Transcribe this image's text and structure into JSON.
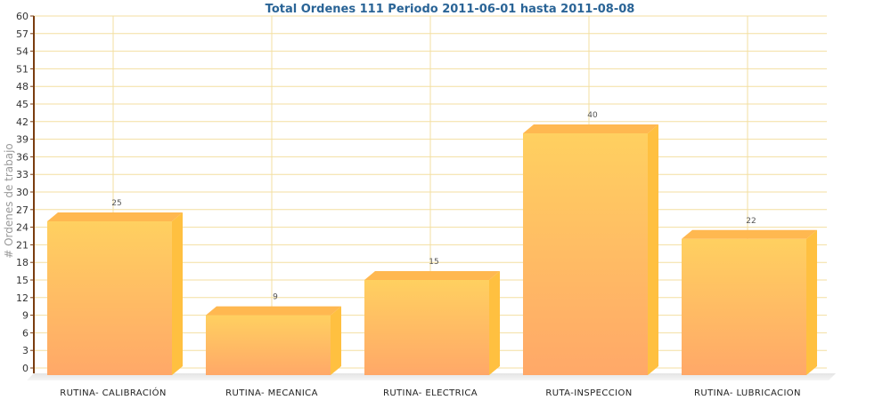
{
  "chart_data": {
    "type": "bar",
    "title": "Total Ordenes 111 Periodo 2011-06-01 hasta 2011-08-08",
    "xlabel": "",
    "ylabel": "# Ordenes de trabajo",
    "categories": [
      "RUTINA- CALIBRACIÓN",
      "RUTINA- MECANICA",
      "RUTINA- ELECTRICA",
      "RUTA-INSPECCION",
      "RUTINA- LUBRICACION"
    ],
    "values": [
      25,
      9,
      15,
      40,
      22
    ],
    "ylim": [
      0,
      60
    ],
    "yticks": [
      0,
      3,
      6,
      9,
      12,
      15,
      18,
      21,
      24,
      27,
      30,
      33,
      36,
      39,
      42,
      45,
      48,
      51,
      54,
      57,
      60
    ],
    "grid": true,
    "legend": "none",
    "colors": {
      "bar_top": "#ffd060",
      "bar_bottom": "#ffa868",
      "bar_side": "#ffc040",
      "bar_cap": "#ffb850",
      "grid": "#f3dfa0",
      "axis": "#7a3d10",
      "title": "#2a6496"
    }
  }
}
